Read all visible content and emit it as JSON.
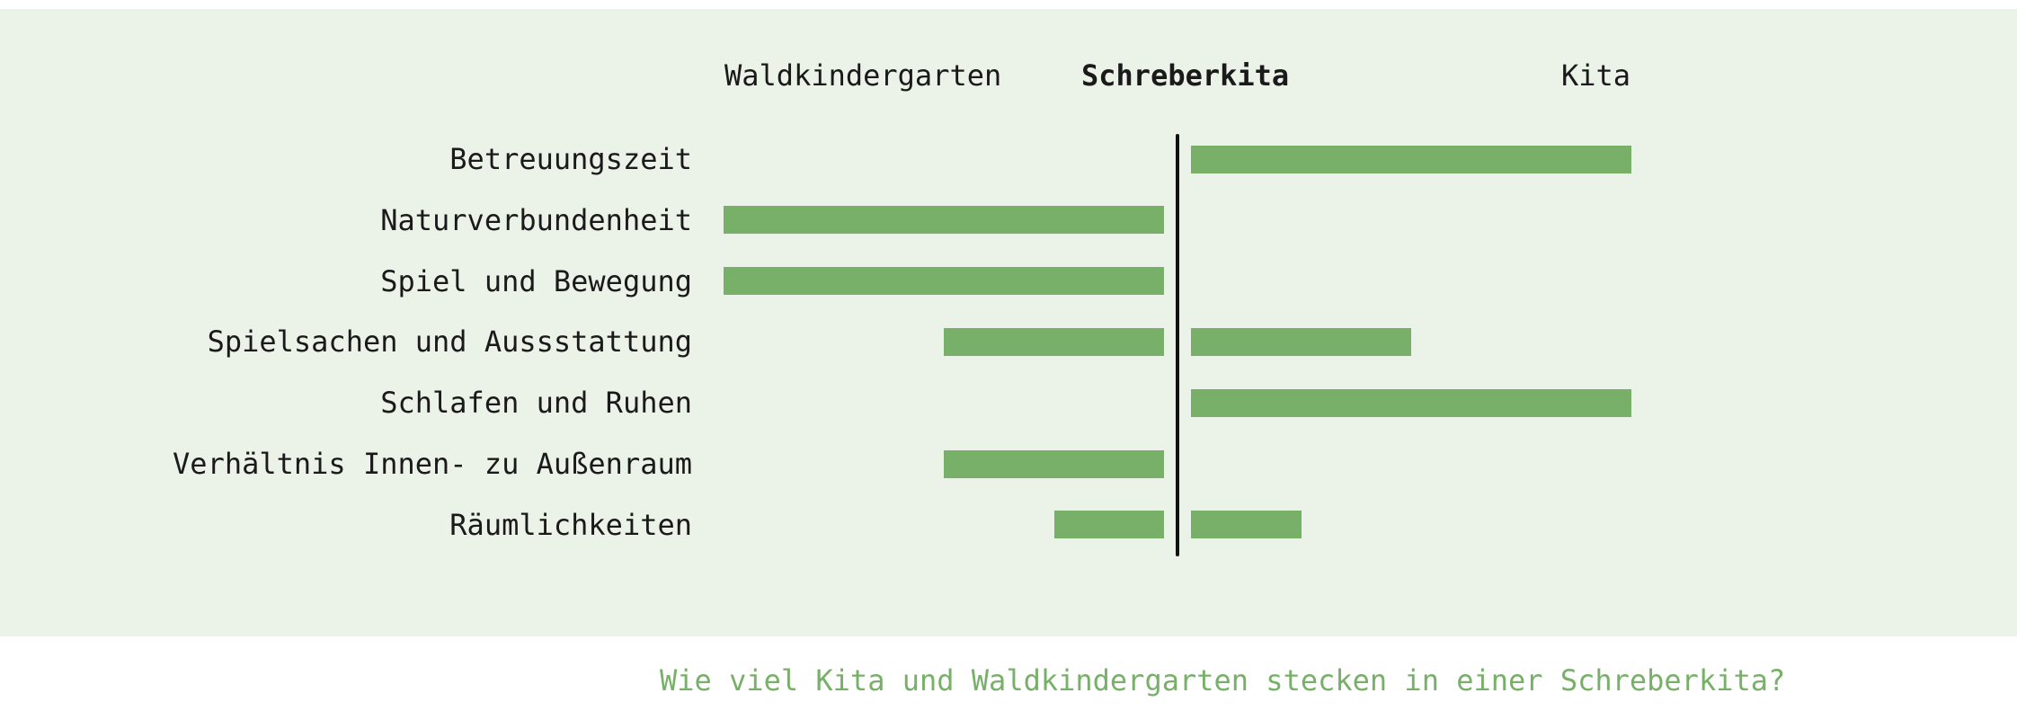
{
  "chart_data": {
    "type": "bar",
    "orientation": "horizontal-diverging",
    "left_label": "Waldkindergarten",
    "center_label": "Schreberkita",
    "right_label": "Kita",
    "categories": [
      "Betreuungszeit",
      "Naturverbundenheit",
      "Spiel und Bewegung",
      "Spielsachen und Aussstattung",
      "Schlafen und Ruhen",
      "Verhältnis Innen- zu Außenraum",
      "Räumlichkeiten"
    ],
    "series": [
      {
        "name": "Waldkindergarten",
        "values": [
          0,
          1,
          1,
          0.5,
          0,
          0.5,
          0.25
        ]
      },
      {
        "name": "Kita",
        "values": [
          1,
          0,
          0,
          0.5,
          1,
          0,
          0.25
        ]
      }
    ],
    "xlim": [
      0,
      1
    ],
    "grid": false,
    "caption": "Wie viel Kita und Waldkindergarten stecken in einer Schreberkita?"
  },
  "colors": {
    "background": "#ebf2e8",
    "bar": "#78b069",
    "axis": "#111111",
    "caption": "#78b069"
  }
}
